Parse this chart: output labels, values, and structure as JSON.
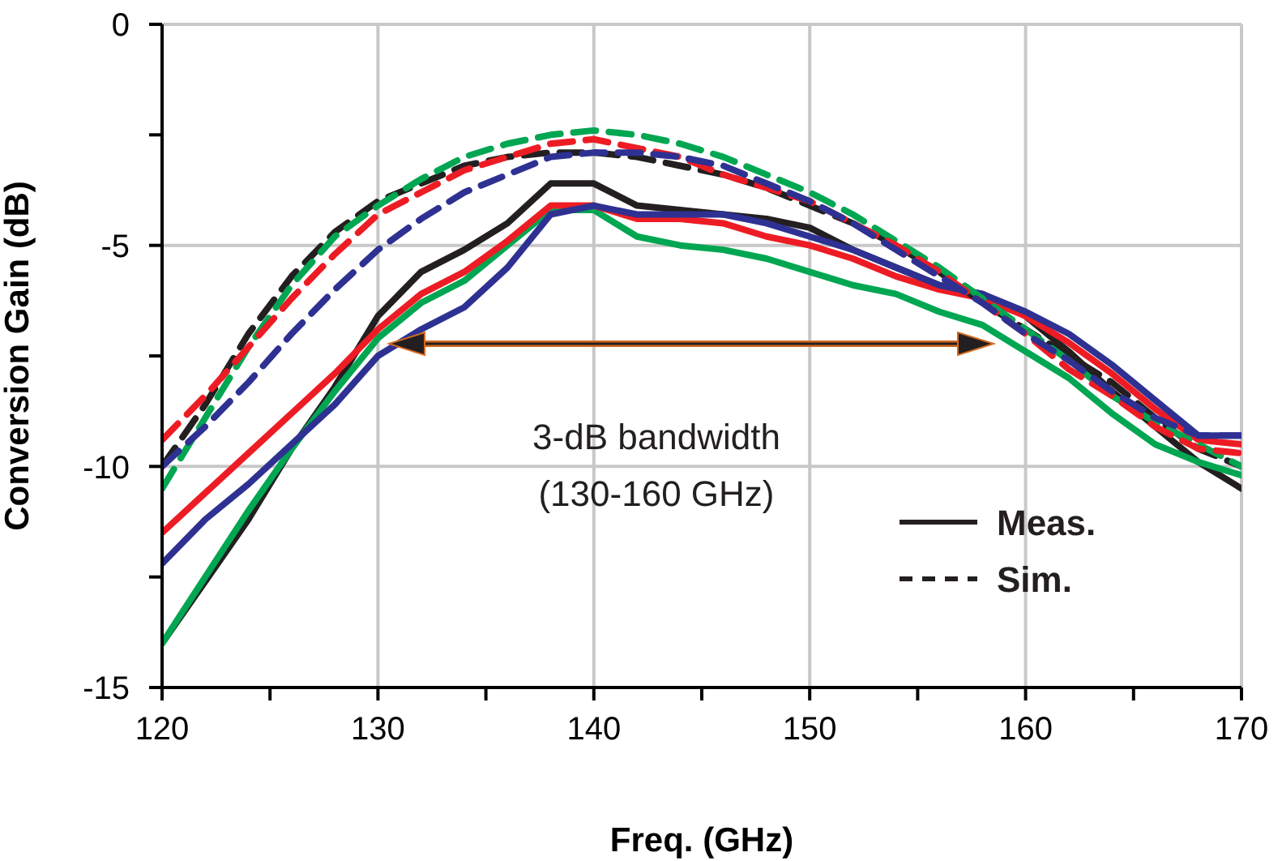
{
  "chart_data": {
    "type": "line",
    "xlabel": "Freq. (GHz)",
    "ylabel": "Conversion Gain (dB)",
    "x": [
      120,
      122,
      124,
      126,
      128,
      130,
      132,
      134,
      136,
      138,
      140,
      142,
      144,
      146,
      148,
      150,
      152,
      154,
      156,
      158,
      160,
      162,
      164,
      166,
      168,
      170
    ],
    "xlim": [
      120,
      170
    ],
    "xticks": [
      120,
      {
        "value": 125,
        "label": null
      },
      130,
      {
        "value": 135,
        "label": null
      },
      140,
      {
        "value": 145,
        "label": null
      },
      150,
      {
        "value": 155,
        "label": null
      },
      160,
      {
        "value": 165,
        "label": null
      },
      170
    ],
    "ylim": [
      -15,
      0
    ],
    "yticks": [
      -15,
      {
        "value": -12.5,
        "label": null
      },
      -10,
      {
        "value": -7.5,
        "label": null
      },
      -5,
      {
        "value": -2.5,
        "label": null
      },
      0
    ],
    "grid": true,
    "legend": "bottom right",
    "marker": "none",
    "annotations": [
      "3-dB bandwidth",
      "(130-160 GHz)"
    ],
    "series": [
      {
        "name": "Meas.",
        "color": "#231f20",
        "line_style": "solid",
        "values": [
          -14,
          -12.6,
          -11.2,
          -9.6,
          -8.2,
          -6.6,
          -5.6,
          -5.1,
          -4.5,
          -3.6,
          -3.6,
          -4.1,
          -4.2,
          -4.3,
          -4.4,
          -4.6,
          -5.1,
          -5.5,
          -5.9,
          -6.1,
          -6.6,
          -7.4,
          -8.3,
          -9.1,
          -9.9,
          -10.5
        ]
      },
      {
        "color": "#00a651",
        "line_style": "solid",
        "values": [
          -14,
          -12.5,
          -11,
          -9.6,
          -8.3,
          -7.1,
          -6.3,
          -5.8,
          -5,
          -4.2,
          -4.2,
          -4.8,
          -5,
          -5.1,
          -5.3,
          -5.6,
          -5.9,
          -6.1,
          -6.5,
          -6.8,
          -7.4,
          -8,
          -8.8,
          -9.5,
          -9.9,
          -10.2
        ]
      },
      {
        "color": "#ed1c24",
        "line_style": "solid",
        "values": [
          -11.5,
          -10.6,
          -9.7,
          -8.8,
          -7.9,
          -6.9,
          -6.1,
          -5.6,
          -4.9,
          -4.1,
          -4.1,
          -4.4,
          -4.4,
          -4.5,
          -4.8,
          -5,
          -5.3,
          -5.7,
          -6,
          -6.2,
          -6.6,
          -7.2,
          -7.9,
          -8.7,
          -9.4,
          -9.5
        ]
      },
      {
        "color": "#2e3192",
        "line_style": "solid",
        "values": [
          -12.2,
          -11.2,
          -10.4,
          -9.5,
          -8.6,
          -7.5,
          -6.9,
          -6.4,
          -5.5,
          -4.3,
          -4.1,
          -4.3,
          -4.3,
          -4.3,
          -4.5,
          -4.8,
          -5.1,
          -5.5,
          -5.9,
          -6.1,
          -6.5,
          -7,
          -7.7,
          -8.5,
          -9.3,
          -9.3
        ]
      },
      {
        "name": "Sim.",
        "color": "#231f20",
        "line_style": "dashed",
        "values": [
          -10,
          -8.6,
          -7,
          -5.7,
          -4.7,
          -4,
          -3.6,
          -3.2,
          -3,
          -2.9,
          -2.9,
          -3,
          -3.2,
          -3.4,
          -3.7,
          -4.1,
          -4.5,
          -5,
          -5.6,
          -6.3,
          -6.9,
          -7.5,
          -8.1,
          -8.9,
          -9.6,
          -10
        ]
      },
      {
        "color": "#00a651",
        "line_style": "dashed",
        "values": [
          -10.5,
          -8.9,
          -7.3,
          -5.9,
          -4.8,
          -4.1,
          -3.5,
          -3,
          -2.7,
          -2.5,
          -2.4,
          -2.5,
          -2.7,
          -3,
          -3.4,
          -3.8,
          -4.3,
          -4.9,
          -5.5,
          -6.2,
          -6.9,
          -7.6,
          -8.4,
          -9,
          -9.5,
          -10
        ]
      },
      {
        "color": "#ed1c24",
        "line_style": "dashed",
        "values": [
          -9.4,
          -8.4,
          -7.3,
          -6.2,
          -5.2,
          -4.3,
          -3.8,
          -3.3,
          -3,
          -2.7,
          -2.6,
          -2.8,
          -3,
          -3.4,
          -3.7,
          -4,
          -4.5,
          -5,
          -5.6,
          -6.3,
          -7,
          -7.8,
          -8.4,
          -9.1,
          -9.6,
          -9.7
        ]
      },
      {
        "color": "#2e3192",
        "line_style": "dashed",
        "values": [
          -10,
          -9.1,
          -8.1,
          -7,
          -6,
          -5.1,
          -4.4,
          -3.8,
          -3.4,
          -3,
          -2.9,
          -2.9,
          -3,
          -3.2,
          -3.6,
          -4,
          -4.5,
          -5.1,
          -5.7,
          -6.3,
          -7,
          -7.6,
          -8.3,
          -8.9,
          -9.3,
          -9.3
        ]
      }
    ]
  }
}
